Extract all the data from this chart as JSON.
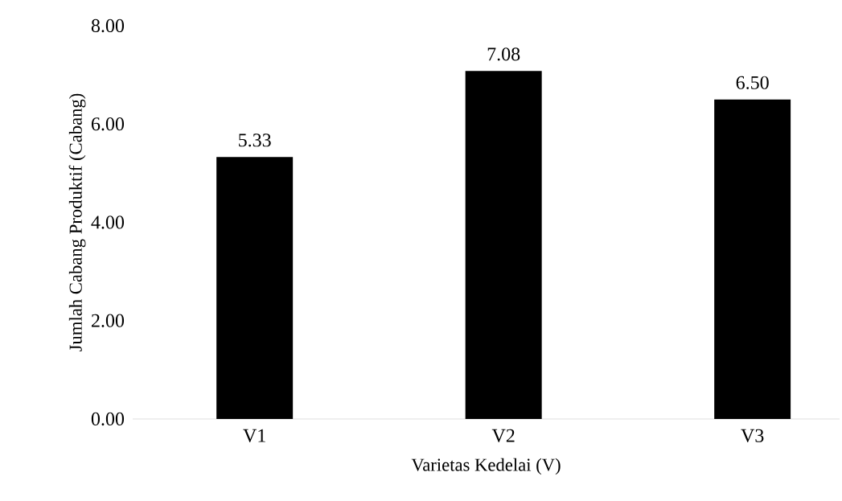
{
  "chart_data": {
    "type": "bar",
    "xlabel": "Varietas Kedelai (V)",
    "ylabel": "Jumlah Cabang Produktif (Cabang)",
    "categories": [
      "V1",
      "V2",
      "V3"
    ],
    "values": [
      5.33,
      7.08,
      6.5
    ],
    "value_labels": [
      "5.33",
      "7.08",
      "6.50"
    ],
    "color": "#000000",
    "ylim": [
      0,
      8
    ],
    "yticks": [
      {
        "value": 0,
        "label": "0.00"
      },
      {
        "value": 2,
        "label": "2.00"
      },
      {
        "value": 4,
        "label": "4.00"
      },
      {
        "value": 6,
        "label": "6.00"
      },
      {
        "value": 8,
        "label": "8.00"
      }
    ]
  }
}
